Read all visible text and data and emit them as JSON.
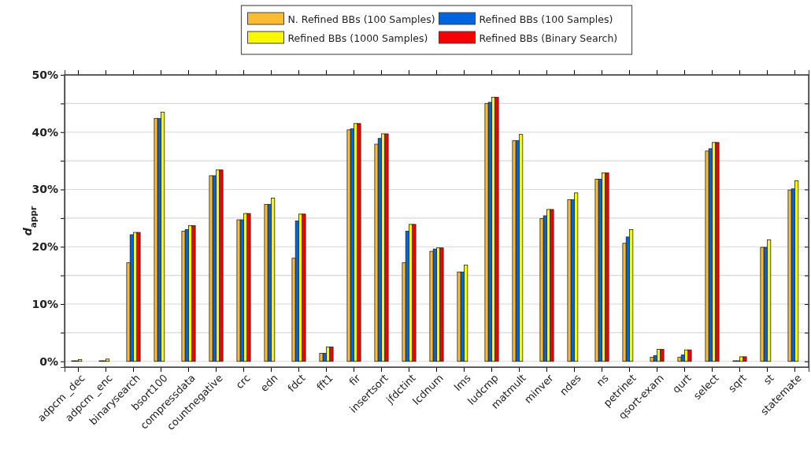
{
  "chart_data": {
    "type": "bar",
    "ylabel": "d$_{appr}$",
    "categories": [
      "adpcm _dec",
      "adpcm _enc",
      "binarysearch",
      "bsort100",
      "compressdata",
      "countnegative",
      "crc",
      "edn",
      "fdct",
      "fft1",
      "fir",
      "insertsort",
      "jfdctint",
      "lcdnum",
      "lms",
      "ludcmp",
      "matmult",
      "minver",
      "ndes",
      "ns",
      "petrinet",
      "qsort-exam",
      "qurt",
      "select",
      "sqrt",
      "st",
      "statemate"
    ],
    "series": [
      {
        "name": "N. Refined BBs (100 Samples)",
        "color": "#fbbc34",
        "values": [
          0.1,
          0.1,
          17.2,
          42.4,
          22.7,
          32.4,
          24.7,
          27.4,
          18.0,
          1.4,
          40.4,
          37.9,
          17.2,
          19.2,
          15.6,
          45.0,
          38.5,
          24.9,
          28.2,
          31.8,
          20.6,
          0.7,
          0.7,
          36.7,
          0.1,
          19.9,
          29.9
        ]
      },
      {
        "name": "Refined BBs (100 Samples)",
        "color": "#0064dc",
        "values": [
          0.1,
          0.1,
          22.1,
          42.4,
          23.0,
          32.4,
          24.7,
          27.4,
          24.5,
          1.4,
          40.6,
          38.9,
          22.7,
          19.6,
          15.6,
          45.2,
          38.5,
          25.4,
          28.2,
          31.8,
          21.7,
          1.0,
          1.1,
          37.1,
          0.1,
          19.9,
          30.1
        ]
      },
      {
        "name": "Refined BBs (1000 Samples)",
        "color": "#f8f800",
        "values": [
          0.3,
          0.4,
          22.5,
          43.5,
          23.7,
          33.4,
          25.8,
          28.5,
          25.7,
          2.5,
          41.5,
          39.7,
          23.9,
          19.8,
          16.8,
          46.1,
          39.6,
          26.5,
          29.4,
          32.9,
          23.0,
          2.1,
          2.0,
          38.2,
          0.8,
          21.2,
          31.5
        ]
      },
      {
        "name": "Refined BBs (Binary Search)",
        "color": "#f80000",
        "values": [
          0,
          0,
          22.5,
          0,
          23.7,
          33.4,
          25.8,
          0,
          25.7,
          2.5,
          41.5,
          39.7,
          23.9,
          19.8,
          0,
          46.1,
          0,
          26.5,
          0,
          32.9,
          0,
          2.1,
          2.0,
          38.2,
          0.8,
          0,
          0
        ]
      }
    ],
    "ylim": [
      -1,
      50
    ],
    "yticks": [
      {
        "value": 0,
        "label": "0%"
      },
      {
        "value": 5,
        "label": null
      },
      {
        "value": 10,
        "label": "10%"
      },
      {
        "value": 15,
        "label": null
      },
      {
        "value": 20,
        "label": "20%"
      },
      {
        "value": 25,
        "label": null
      },
      {
        "value": 30,
        "label": "30%"
      },
      {
        "value": 35,
        "label": null
      },
      {
        "value": 40,
        "label": "40%"
      },
      {
        "value": 45,
        "label": null
      },
      {
        "value": 50,
        "label": "50%"
      }
    ],
    "grid": "y",
    "legend": "top"
  }
}
